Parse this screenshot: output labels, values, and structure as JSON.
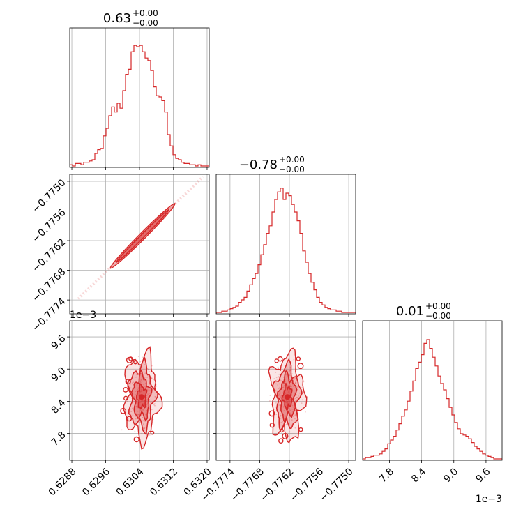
{
  "chart_data": {
    "type": "corner",
    "color": "#d62728",
    "grid": true,
    "params": [
      {
        "index": 0,
        "range": [
          0.62875,
          0.63205
        ],
        "ticks": [
          0.6288,
          0.6296,
          0.6304,
          0.6312,
          0.632
        ],
        "tick_labels": [
          "0.6288",
          "0.6296",
          "0.6304",
          "0.6312",
          "0.6320"
        ]
      },
      {
        "index": 1,
        "range": [
          -0.77768,
          -0.77486
        ],
        "ticks": [
          -0.7774,
          -0.7768,
          -0.7762,
          -0.7756,
          -0.775
        ],
        "tick_labels": [
          "−0.7774",
          "−0.7768",
          "−0.7762",
          "−0.7756",
          "−0.7750"
        ]
      },
      {
        "index": 2,
        "range": [
          0.0073,
          0.0099
        ],
        "ticks": [
          0.0078,
          0.0084,
          0.009,
          0.0096
        ],
        "tick_labels": [
          "7.8",
          "8.4",
          "9.0",
          "9.6"
        ],
        "offset_label": "1e−3"
      }
    ],
    "titles": [
      {
        "value": "0.63",
        "plus": "+0.00",
        "minus": "−0.00"
      },
      {
        "value": "−0.78",
        "plus": "+0.00",
        "minus": "−0.00"
      },
      {
        "value": "0.01",
        "plus": "+0.00",
        "minus": "−0.00"
      }
    ],
    "hist1d": [
      {
        "param": 0,
        "bins": [
          0.62875,
          0.63205
        ],
        "counts": [
          0.01,
          0.0,
          0.02,
          0.02,
          0.01,
          0.03,
          0.03,
          0.04,
          0.05,
          0.1,
          0.13,
          0.14,
          0.24,
          0.3,
          0.4,
          0.47,
          0.43,
          0.5,
          0.46,
          0.6,
          0.73,
          0.77,
          0.91,
          0.96,
          0.95,
          0.96,
          0.91,
          0.86,
          0.84,
          0.76,
          0.63,
          0.56,
          0.55,
          0.52,
          0.43,
          0.25,
          0.16,
          0.09,
          0.06,
          0.05,
          0.03,
          0.02,
          0.02,
          0.01,
          0.01,
          0.0,
          0.01,
          0.0,
          0.0,
          0.0
        ]
      },
      {
        "param": 1,
        "bins": [
          -0.77768,
          -0.77486
        ],
        "counts": [
          0.0,
          0.0,
          0.01,
          0.01,
          0.02,
          0.03,
          0.04,
          0.05,
          0.08,
          0.1,
          0.12,
          0.17,
          0.22,
          0.27,
          0.31,
          0.38,
          0.46,
          0.54,
          0.63,
          0.69,
          0.8,
          0.9,
          0.96,
          0.99,
          0.9,
          0.95,
          0.93,
          0.86,
          0.8,
          0.73,
          0.63,
          0.49,
          0.4,
          0.31,
          0.24,
          0.18,
          0.12,
          0.08,
          0.06,
          0.04,
          0.03,
          0.02,
          0.02,
          0.01,
          0.01,
          0.0,
          0.0,
          0.0,
          0.0,
          0.0
        ]
      },
      {
        "param": 2,
        "bins": [
          0.0073,
          0.0099
        ],
        "counts": [
          0.0,
          0.01,
          0.01,
          0.02,
          0.03,
          0.03,
          0.04,
          0.06,
          0.08,
          0.12,
          0.15,
          0.18,
          0.23,
          0.28,
          0.34,
          0.39,
          0.46,
          0.54,
          0.62,
          0.72,
          0.77,
          0.83,
          0.92,
          0.95,
          0.88,
          0.81,
          0.74,
          0.66,
          0.6,
          0.55,
          0.48,
          0.41,
          0.35,
          0.29,
          0.24,
          0.2,
          0.19,
          0.18,
          0.16,
          0.13,
          0.1,
          0.08,
          0.06,
          0.04,
          0.03,
          0.02,
          0.01,
          0.0,
          0.0,
          0.0
        ]
      }
    ],
    "hist2d": [
      {
        "x": 0,
        "y": 1,
        "kind": "correlated",
        "endpoints": [
          [
            0.62895,
            -0.77738
          ],
          [
            0.6319,
            -0.77491
          ]
        ],
        "core": [
          [
            0.62985,
            -0.77664
          ],
          [
            0.6311,
            -0.77557
          ]
        ]
      },
      {
        "x": 0,
        "y": 2,
        "kind": "blob",
        "center": [
          0.63045,
          0.00848
        ],
        "spread": [
          0.00023,
          0.00045
        ]
      },
      {
        "x": 1,
        "y": 2,
        "kind": "blob",
        "center": [
          -0.77624,
          0.00848
        ],
        "spread": [
          0.00019,
          0.00045
        ]
      }
    ]
  }
}
